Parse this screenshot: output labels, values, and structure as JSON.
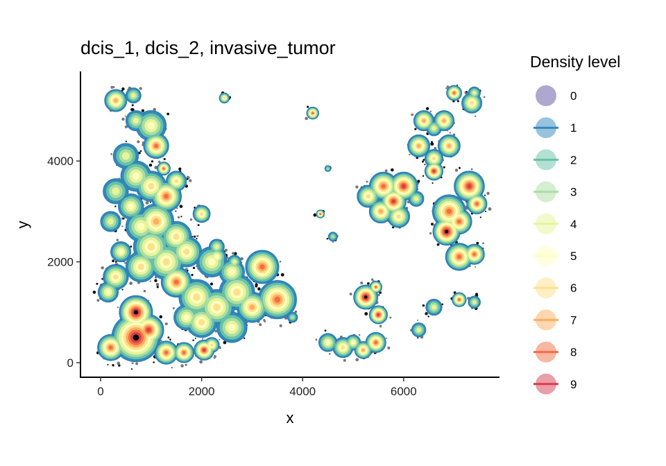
{
  "chart_data": {
    "type": "contour-density",
    "title": "dcis_1, dcis_2, invasive_tumor",
    "xlabel": "x",
    "ylabel": "y",
    "xlim": [
      -400,
      7800
    ],
    "ylim": [
      -300,
      5900
    ],
    "xticks": [
      "0",
      "2000",
      "4000",
      "6000"
    ],
    "xtick_values": [
      0,
      2000,
      4000,
      6000
    ],
    "yticks": [
      "0",
      "2000",
      "4000"
    ],
    "ytick_values": [
      0,
      2000,
      4000
    ],
    "legend": {
      "title": "Density level",
      "position": "right",
      "levels": [
        "0",
        "1",
        "2",
        "3",
        "4",
        "5",
        "6",
        "7",
        "8",
        "9"
      ],
      "colors": [
        "#5e4fa2",
        "#3288bd",
        "#66c2a5",
        "#abdda4",
        "#e6f598",
        "#ffffbf",
        "#fee08b",
        "#fdae61",
        "#f46d43",
        "#d53e4f"
      ]
    },
    "clusters": [
      [
        700,
        500,
        480,
        10
      ],
      [
        700,
        1000,
        330,
        10
      ],
      [
        950,
        650,
        300,
        9
      ],
      [
        200,
        300,
        260,
        8
      ],
      [
        1300,
        200,
        230,
        8
      ],
      [
        1650,
        200,
        200,
        8
      ],
      [
        2050,
        250,
        200,
        9
      ],
      [
        2200,
        350,
        150,
        6
      ],
      [
        3200,
        1900,
        330,
        8
      ],
      [
        3500,
        1250,
        380,
        8
      ],
      [
        3000,
        1100,
        300,
        7
      ],
      [
        2700,
        1400,
        350,
        6
      ],
      [
        2300,
        1100,
        350,
        6
      ],
      [
        1900,
        1300,
        350,
        6
      ],
      [
        1500,
        1600,
        300,
        8
      ],
      [
        2000,
        800,
        300,
        6
      ],
      [
        2600,
        700,
        300,
        5
      ],
      [
        1700,
        900,
        250,
        5
      ],
      [
        1300,
        2000,
        350,
        6
      ],
      [
        1000,
        2300,
        350,
        6
      ],
      [
        800,
        1900,
        300,
        6
      ],
      [
        1500,
        2500,
        300,
        6
      ],
      [
        1100,
        2800,
        350,
        7
      ],
      [
        800,
        2700,
        300,
        5
      ],
      [
        600,
        3100,
        250,
        5
      ],
      [
        1300,
        3300,
        300,
        8
      ],
      [
        1000,
        3500,
        300,
        6
      ],
      [
        1500,
        3600,
        200,
        6
      ],
      [
        1250,
        3850,
        130,
        8
      ],
      [
        700,
        3700,
        300,
        5
      ],
      [
        500,
        4100,
        250,
        4
      ],
      [
        300,
        3400,
        250,
        4
      ],
      [
        200,
        2800,
        200,
        4
      ],
      [
        400,
        2200,
        200,
        5
      ],
      [
        300,
        1700,
        250,
        6
      ],
      [
        150,
        1400,
        200,
        5
      ],
      [
        1700,
        2200,
        300,
        6
      ],
      [
        2200,
        2000,
        300,
        5
      ],
      [
        2600,
        1800,
        250,
        5
      ],
      [
        1000,
        4700,
        300,
        5
      ],
      [
        1100,
        4300,
        250,
        8
      ],
      [
        700,
        4800,
        200,
        4
      ],
      [
        300,
        5200,
        220,
        7
      ],
      [
        650,
        5300,
        150,
        4
      ],
      [
        2000,
        2950,
        170,
        6
      ],
      [
        2300,
        2100,
        180,
        5
      ],
      [
        2450,
        5250,
        100,
        6
      ],
      [
        4200,
        4950,
        120,
        8
      ],
      [
        4350,
        2950,
        80,
        8
      ],
      [
        4500,
        3850,
        60,
        3
      ],
      [
        4600,
        2500,
        90,
        3
      ],
      [
        3800,
        900,
        100,
        3
      ],
      [
        6400,
        4800,
        200,
        7
      ],
      [
        6800,
        4800,
        200,
        7
      ],
      [
        6300,
        4300,
        220,
        7
      ],
      [
        6900,
        4300,
        220,
        7
      ],
      [
        6600,
        4050,
        180,
        6
      ],
      [
        6600,
        4650,
        150,
        4
      ],
      [
        5600,
        3500,
        280,
        8
      ],
      [
        6000,
        3500,
        280,
        9
      ],
      [
        5800,
        3200,
        250,
        9
      ],
      [
        5550,
        3000,
        230,
        7
      ],
      [
        5300,
        3300,
        220,
        6
      ],
      [
        5900,
        2900,
        220,
        6
      ],
      [
        6250,
        3250,
        150,
        4
      ],
      [
        6600,
        3800,
        180,
        9
      ],
      [
        6900,
        3000,
        330,
        8
      ],
      [
        7300,
        3500,
        300,
        9
      ],
      [
        7450,
        3150,
        200,
        8
      ],
      [
        7100,
        2800,
        250,
        8
      ],
      [
        6850,
        2600,
        270,
        10
      ],
      [
        7100,
        2100,
        270,
        8
      ],
      [
        7400,
        2150,
        200,
        8
      ],
      [
        5250,
        1300,
        240,
        10
      ],
      [
        5500,
        950,
        180,
        9
      ],
      [
        5450,
        1500,
        120,
        8
      ],
      [
        5450,
        400,
        200,
        8
      ],
      [
        5200,
        250,
        170,
        7
      ],
      [
        4800,
        300,
        200,
        6
      ],
      [
        4500,
        400,
        180,
        5
      ],
      [
        5000,
        400,
        150,
        5
      ],
      [
        7100,
        1250,
        140,
        8
      ],
      [
        7400,
        1200,
        120,
        4
      ],
      [
        6600,
        1100,
        160,
        4
      ],
      [
        6300,
        650,
        140,
        4
      ],
      [
        7000,
        5350,
        150,
        8
      ],
      [
        7350,
        5150,
        200,
        6
      ],
      [
        7400,
        5350,
        120,
        4
      ],
      [
        2300,
        2300,
        150,
        4
      ],
      [
        2650,
        2000,
        130,
        4
      ]
    ]
  }
}
